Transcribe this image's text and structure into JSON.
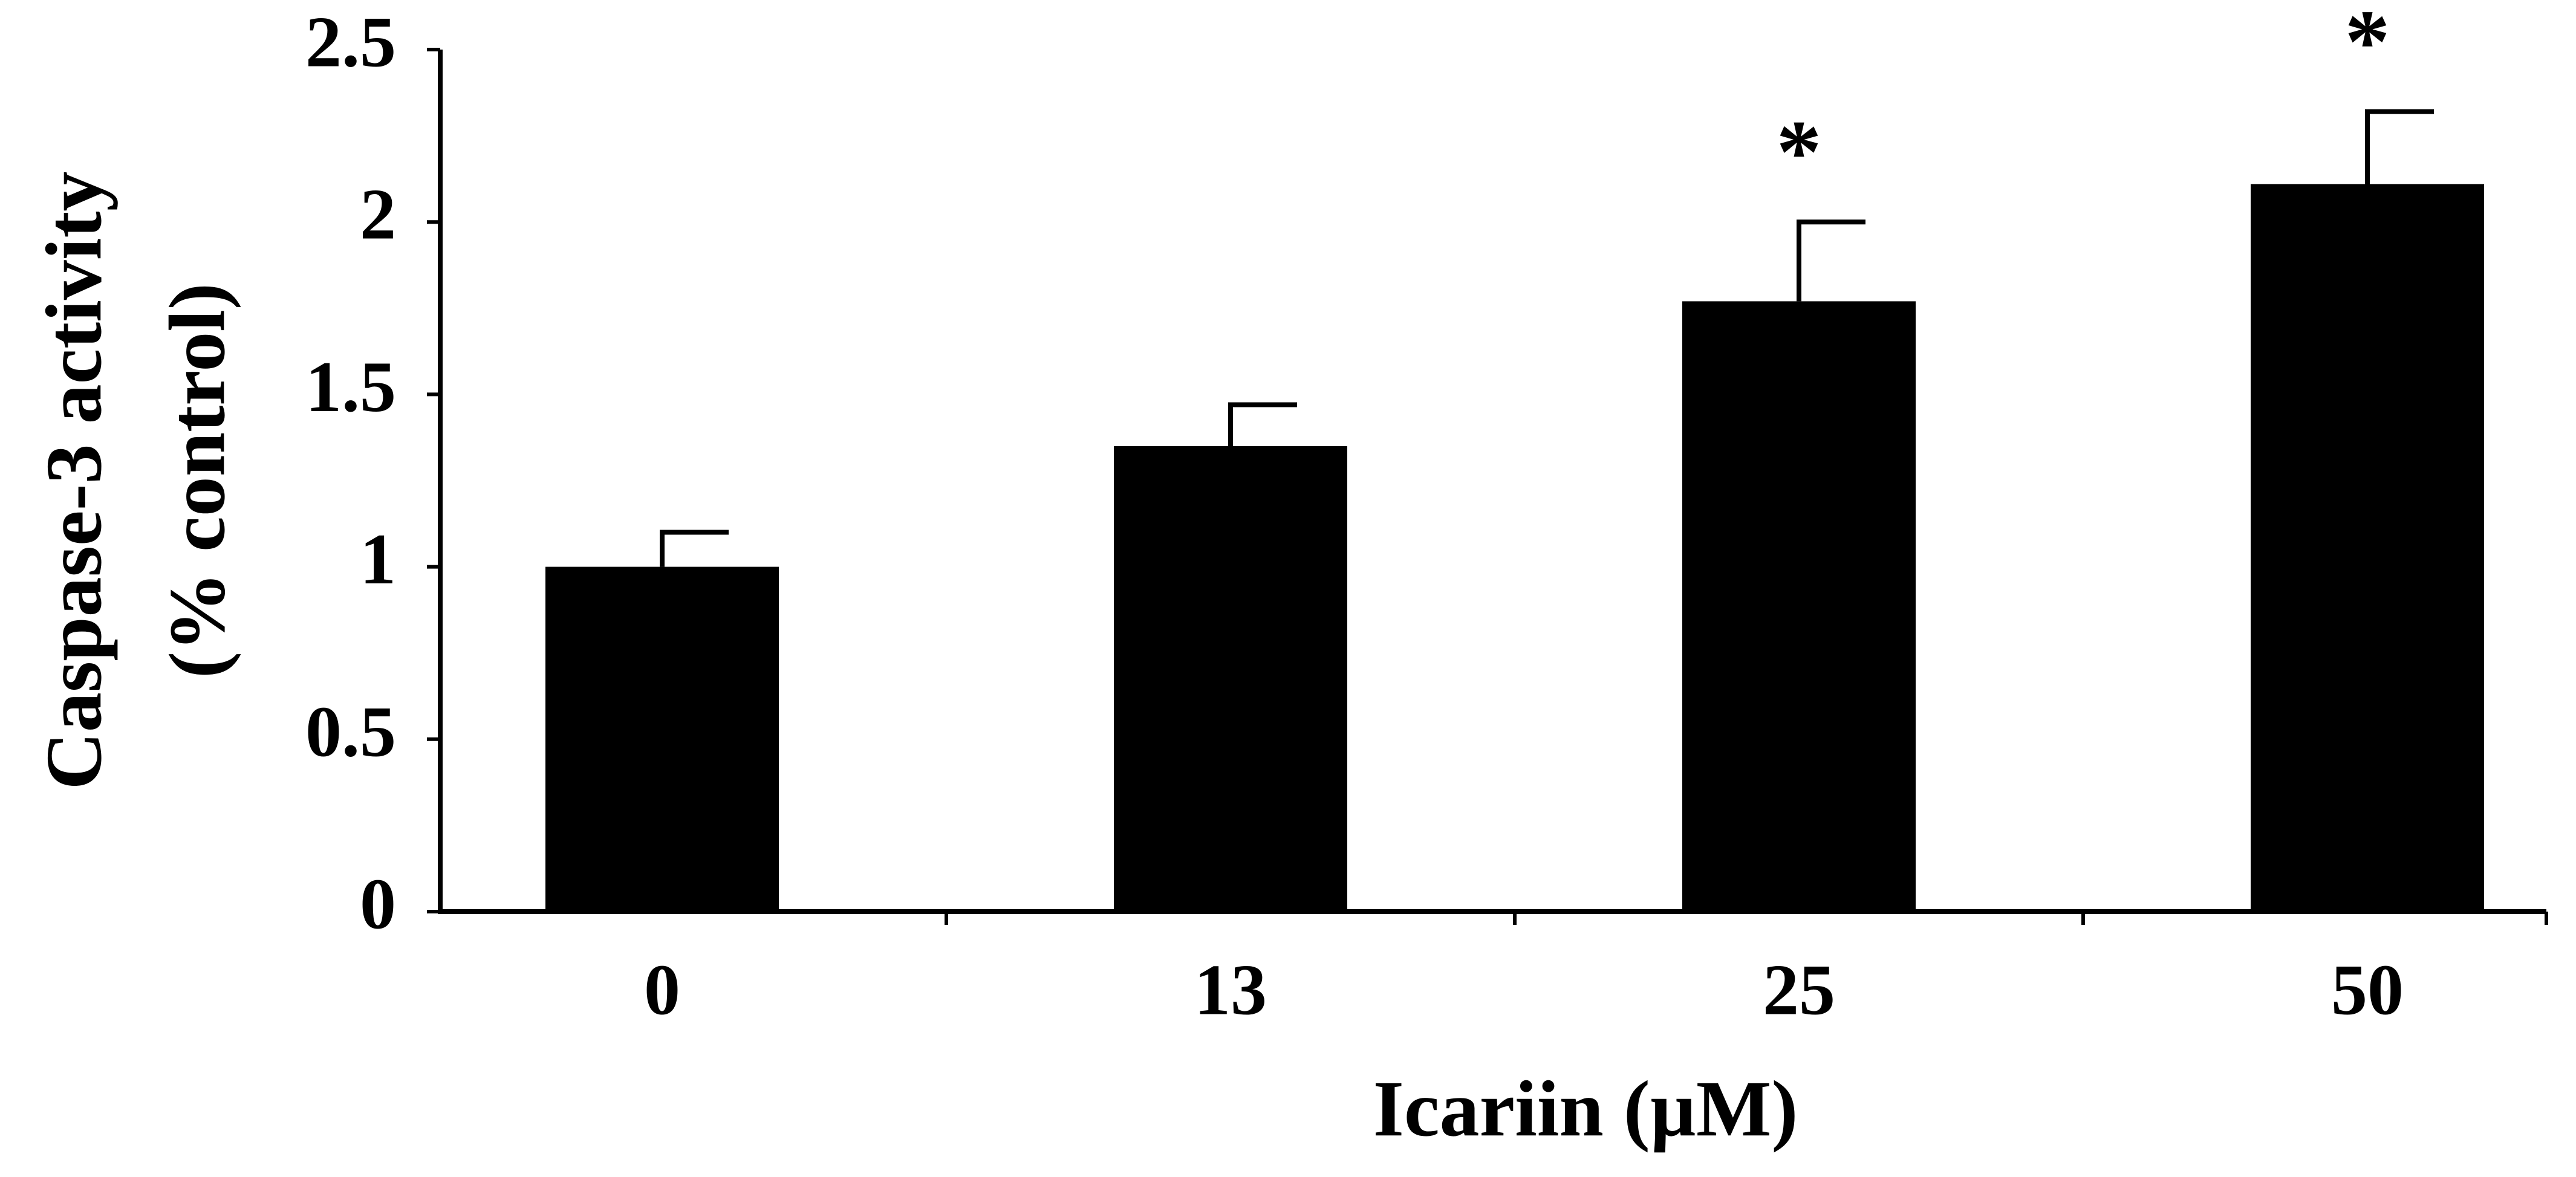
{
  "chart_data": {
    "type": "bar",
    "categories": [
      "0",
      "13",
      "25",
      "50"
    ],
    "values": [
      1.0,
      1.35,
      1.77,
      2.11
    ],
    "errors": [
      0.1,
      0.12,
      0.23,
      0.21
    ],
    "significance": [
      null,
      null,
      "*",
      "*"
    ],
    "color": "#000000",
    "ylim": [
      0,
      2.5
    ],
    "yticks": [
      0,
      0.5,
      1,
      1.5,
      2,
      2.5
    ],
    "y_label": [
      "Caspase-3 activity",
      "(% control)"
    ],
    "x_label": "Icariin (µM)",
    "grid": false
  }
}
